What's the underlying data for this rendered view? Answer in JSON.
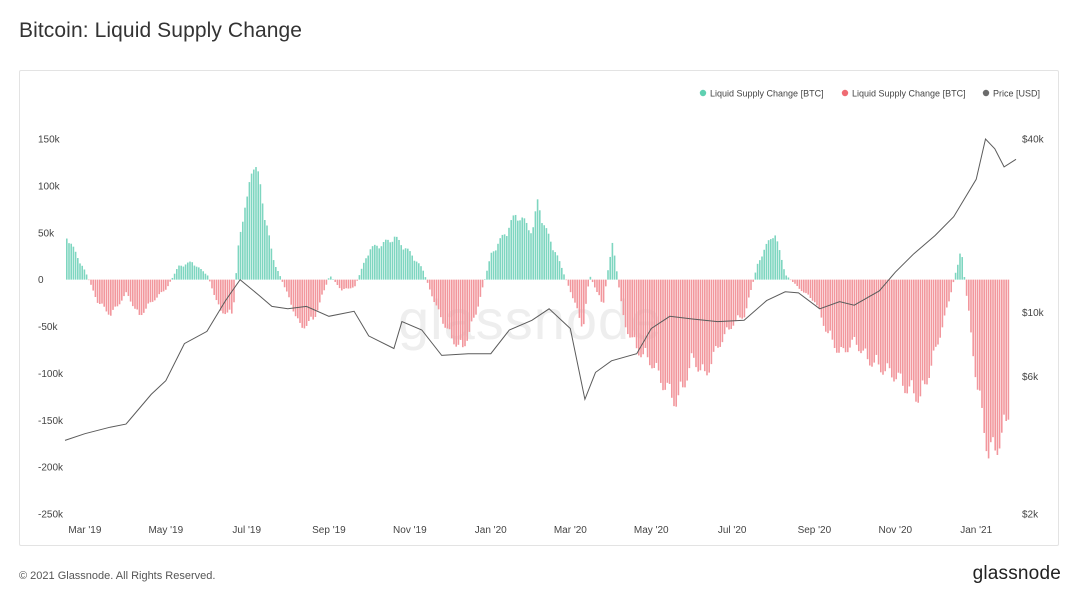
{
  "title": "Bitcoin: Liquid Supply Change",
  "footer": {
    "copyright": "© 2021 Glassnode. All Rights Reserved.",
    "logo": "glassnode"
  },
  "watermark": "glassnode",
  "colors": {
    "positive": "#7ed6c0",
    "negative": "#f2979d",
    "price": "#5b5b5b"
  },
  "chart_data": {
    "type": "bar",
    "title": "Bitcoin: Liquid Supply Change",
    "legend": {
      "placement": "top-right",
      "entries": [
        {
          "label": "Liquid Supply Change [BTC]",
          "color": "#5fd0b1"
        },
        {
          "label": "Liquid Supply Change [BTC]",
          "color": "#ef6b73"
        },
        {
          "label": "Price [USD]",
          "color": "#6b6b6b"
        }
      ]
    },
    "x_ticks": [
      "Mar '19",
      "May '19",
      "Jul '19",
      "Sep '19",
      "Nov '19",
      "Jan '20",
      "Mar '20",
      "May '20",
      "Jul '20",
      "Sep '20",
      "Nov '20",
      "Jan '21"
    ],
    "x_tick_dates": [
      "2019-03-01",
      "2019-05-01",
      "2019-07-01",
      "2019-09-01",
      "2019-11-01",
      "2020-01-01",
      "2020-03-01",
      "2020-05-01",
      "2020-07-01",
      "2020-09-01",
      "2020-11-01",
      "2021-01-01"
    ],
    "x_range": [
      "2019-02-14",
      "2021-01-31"
    ],
    "y_left": {
      "ticks": [
        150000,
        100000,
        50000,
        0,
        -50000,
        -100000,
        -150000,
        -200000,
        -250000
      ],
      "tick_labels": [
        "150k",
        "100k",
        "50k",
        "0",
        "-50k",
        "-100k",
        "-150k",
        "-200k",
        "-250k"
      ],
      "range": [
        -250000,
        150000
      ]
    },
    "y_right": {
      "scale": "log",
      "ticks": [
        40000,
        10000,
        6000,
        2000
      ],
      "tick_labels": [
        "$40k",
        "$10k",
        "$6k",
        "$2k"
      ],
      "range": [
        2000,
        40000
      ]
    },
    "grid": false,
    "series": [
      {
        "name": "Liquid Supply Change [BTC]",
        "kind": "bar",
        "x": [
          "2019-02-14",
          "2019-03-01",
          "2019-03-10",
          "2019-03-20",
          "2019-04-01",
          "2019-04-10",
          "2019-04-20",
          "2019-05-01",
          "2019-05-10",
          "2019-05-20",
          "2019-06-01",
          "2019-06-10",
          "2019-06-20",
          "2019-06-25",
          "2019-07-01",
          "2019-07-05",
          "2019-07-10",
          "2019-07-20",
          "2019-08-01",
          "2019-08-10",
          "2019-08-20",
          "2019-09-01",
          "2019-09-10",
          "2019-09-20",
          "2019-10-01",
          "2019-10-10",
          "2019-10-20",
          "2019-11-01",
          "2019-11-10",
          "2019-11-20",
          "2019-12-01",
          "2019-12-10",
          "2019-12-20",
          "2020-01-01",
          "2020-01-10",
          "2020-01-20",
          "2020-02-01",
          "2020-02-05",
          "2020-02-10",
          "2020-02-20",
          "2020-03-01",
          "2020-03-10",
          "2020-03-15",
          "2020-03-25",
          "2020-04-01",
          "2020-04-10",
          "2020-04-20",
          "2020-05-01",
          "2020-05-10",
          "2020-05-20",
          "2020-06-01",
          "2020-06-10",
          "2020-06-20",
          "2020-07-01",
          "2020-07-10",
          "2020-07-20",
          "2020-08-01",
          "2020-08-10",
          "2020-08-20",
          "2020-09-01",
          "2020-09-10",
          "2020-09-20",
          "2020-10-01",
          "2020-10-10",
          "2020-10-20",
          "2020-11-01",
          "2020-11-10",
          "2020-11-20",
          "2020-12-01",
          "2020-12-10",
          "2020-12-20",
          "2021-01-01",
          "2021-01-10",
          "2021-01-20",
          "2021-01-31"
        ],
        "values": [
          52000,
          8000,
          -25000,
          -40000,
          -15000,
          -42000,
          -25000,
          -10000,
          15000,
          20000,
          5000,
          -35000,
          -40000,
          55000,
          90000,
          140000,
          110000,
          25000,
          -20000,
          -55000,
          -45000,
          5000,
          -12000,
          -8000,
          35000,
          40000,
          48000,
          30000,
          12000,
          -30000,
          -65000,
          -80000,
          -40000,
          30000,
          50000,
          75000,
          55000,
          90000,
          60000,
          25000,
          -15000,
          -55000,
          5000,
          -30000,
          45000,
          -50000,
          -80000,
          -95000,
          -120000,
          -140000,
          -90000,
          -110000,
          -75000,
          -50000,
          -40000,
          20000,
          55000,
          5000,
          -10000,
          -25000,
          -60000,
          -85000,
          -70000,
          -90000,
          -100000,
          -110000,
          -125000,
          -135000,
          -80000,
          -30000,
          35000,
          -120000,
          -200000,
          -180000,
          -110000
        ]
      },
      {
        "name": "Price [USD]",
        "kind": "line",
        "axis": "right",
        "x": [
          "2019-02-14",
          "2019-03-01",
          "2019-03-20",
          "2019-04-01",
          "2019-04-20",
          "2019-05-01",
          "2019-05-15",
          "2019-06-01",
          "2019-06-15",
          "2019-06-26",
          "2019-07-10",
          "2019-07-20",
          "2019-08-01",
          "2019-08-15",
          "2019-09-01",
          "2019-09-20",
          "2019-10-01",
          "2019-10-20",
          "2019-10-26",
          "2019-11-10",
          "2019-11-25",
          "2019-12-15",
          "2020-01-01",
          "2020-01-15",
          "2020-02-01",
          "2020-02-14",
          "2020-03-01",
          "2020-03-12",
          "2020-03-20",
          "2020-04-01",
          "2020-04-20",
          "2020-05-01",
          "2020-05-15",
          "2020-06-01",
          "2020-06-20",
          "2020-07-10",
          "2020-07-27",
          "2020-08-10",
          "2020-08-20",
          "2020-09-05",
          "2020-09-20",
          "2020-10-01",
          "2020-10-20",
          "2020-11-01",
          "2020-11-15",
          "2020-12-01",
          "2020-12-15",
          "2021-01-01",
          "2021-01-08",
          "2021-01-15",
          "2021-01-22",
          "2021-01-31"
        ],
        "values": [
          3600,
          3800,
          4000,
          4100,
          5200,
          5800,
          7800,
          8600,
          11000,
          13000,
          11500,
          10500,
          10300,
          10500,
          9700,
          10100,
          8300,
          7500,
          9300,
          8700,
          7100,
          7200,
          7200,
          8700,
          9400,
          10300,
          8800,
          5000,
          6200,
          6800,
          7200,
          8800,
          9700,
          9500,
          9300,
          9400,
          11000,
          11800,
          11700,
          10300,
          10900,
          10600,
          11900,
          13800,
          16000,
          18500,
          21500,
          29000,
          40000,
          37000,
          32000,
          34000
        ]
      }
    ]
  }
}
